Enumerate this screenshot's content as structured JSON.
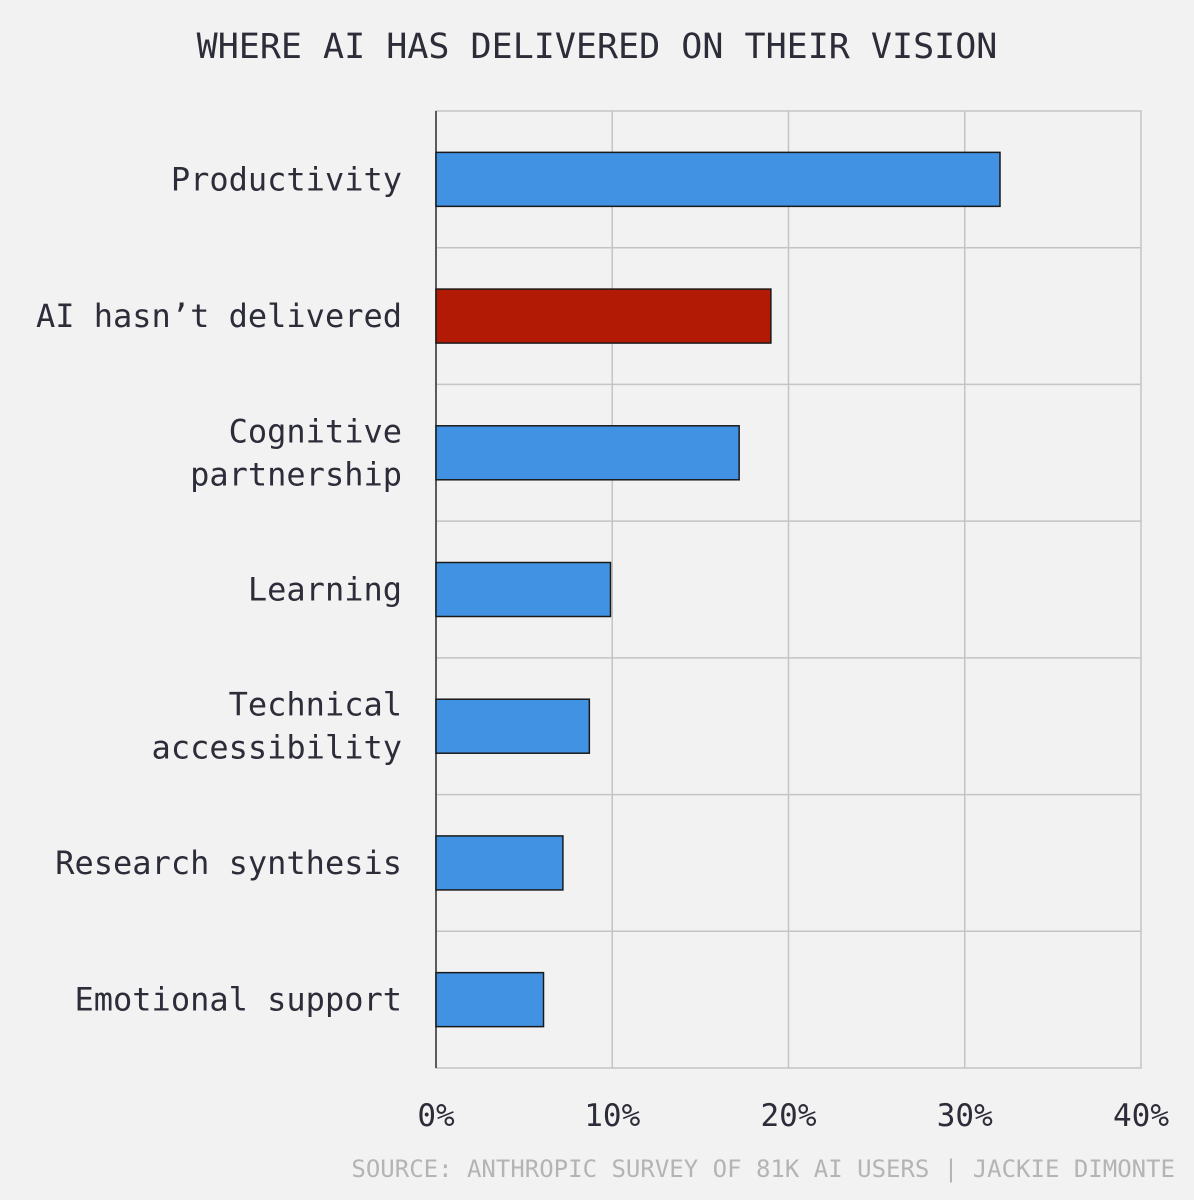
{
  "chart_data": {
    "type": "bar",
    "orientation": "horizontal",
    "title": "WHERE AI HAS DELIVERED ON THEIR VISION",
    "categories": [
      [
        "Productivity"
      ],
      [
        "AI hasn’t delivered"
      ],
      [
        "Cognitive ",
        "partnership"
      ],
      [
        "Learning"
      ],
      [
        "Technical ",
        "accessibility"
      ],
      [
        "Research synthesis"
      ],
      [
        "Emotional support"
      ]
    ],
    "values": [
      32,
      19,
      17.2,
      9.9,
      8.7,
      7.2,
      6.1
    ],
    "unit": "%",
    "xlim": [
      0,
      40
    ],
    "ticks": [
      0,
      10,
      20,
      30,
      40
    ],
    "tick_labels": [
      "0%",
      "10%",
      "20%",
      "30%",
      "40%"
    ],
    "grid": true,
    "colors": {
      "default": "#4192e2",
      "highlight": "#b31a06",
      "bar_outline": "#1a1a1a",
      "grid": "#c4c4c4",
      "background": "#f2f2f2"
    },
    "highlight_index": 1,
    "source": "SOURCE: ANTHROPIC SURVEY OF 81K AI USERS | JACKIE DIMONTE"
  }
}
